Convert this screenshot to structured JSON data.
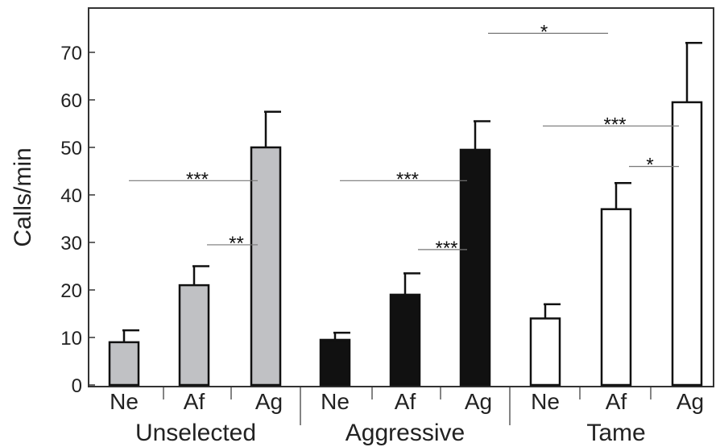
{
  "chart_data": {
    "type": "bar",
    "ylabel": "Calls/min",
    "ylim": [
      0,
      80
    ],
    "yticks": [
      "0",
      "10",
      "20",
      "30",
      "40",
      "50",
      "60",
      "70"
    ],
    "grid": false,
    "groups": [
      {
        "name": "Unselected",
        "color": "#c0c1c4",
        "bars": [
          {
            "category": "Ne",
            "value": 9,
            "error": 2.5
          },
          {
            "category": "Af",
            "value": 21,
            "error": 4
          },
          {
            "category": "Ag",
            "value": 50,
            "error": 7.5
          }
        ]
      },
      {
        "name": "Aggressive",
        "color": "#111111",
        "bars": [
          {
            "category": "Ne",
            "value": 9.5,
            "error": 1.5
          },
          {
            "category": "Af",
            "value": 19,
            "error": 4.5
          },
          {
            "category": "Ag",
            "value": 49.5,
            "error": 6
          }
        ]
      },
      {
        "name": "Tame",
        "color": "#ffffff",
        "bars": [
          {
            "category": "Ne",
            "value": 14,
            "error": 3
          },
          {
            "category": "Af",
            "value": 37,
            "error": 5.5
          },
          {
            "category": "Ag",
            "value": 59.5,
            "error": 12.5
          }
        ]
      }
    ],
    "significance": [
      {
        "label": "***",
        "from": [
          0,
          0
        ],
        "to": [
          0,
          2
        ],
        "y": 43
      },
      {
        "label": "**",
        "from": [
          0,
          1
        ],
        "to": [
          0,
          2
        ],
        "y": 29.5
      },
      {
        "label": "***",
        "from": [
          1,
          0
        ],
        "to": [
          1,
          2
        ],
        "y": 43
      },
      {
        "label": "***",
        "from": [
          1,
          1
        ],
        "to": [
          1,
          2
        ],
        "y": 28.5
      },
      {
        "label": "*",
        "from": [
          1,
          2
        ],
        "to": [
          2,
          1
        ],
        "y": 74
      },
      {
        "label": "***",
        "from": [
          2,
          0
        ],
        "to": [
          2,
          2
        ],
        "y": 54.5
      },
      {
        "label": "*",
        "from": [
          2,
          1
        ],
        "to": [
          2,
          2
        ],
        "y": 46
      }
    ]
  }
}
